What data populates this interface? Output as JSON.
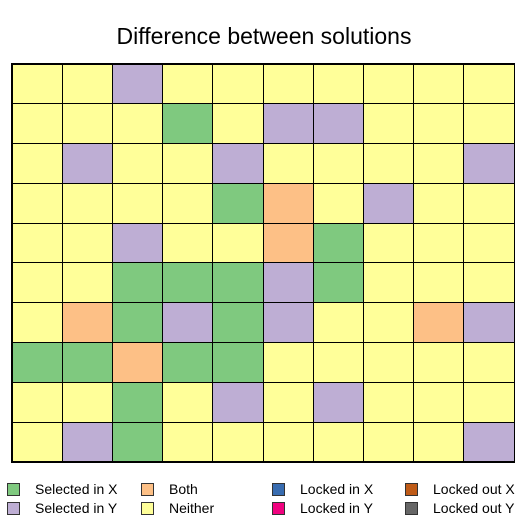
{
  "title": "Difference between solutions",
  "colors": {
    "selected_x": "#7fc97f",
    "selected_y": "#beaed4",
    "both": "#fdc086",
    "neither": "#ffff99",
    "locked_x": "#386cb0",
    "locked_y": "#f0027f",
    "locked_out_x": "#bf5b17",
    "locked_out_y": "#666666"
  },
  "grid": {
    "rows": 10,
    "cols": 10,
    "legend_key": {
      "X": "selected_x",
      "Y": "selected_y",
      "B": "both",
      "N": "neither"
    },
    "cells": [
      [
        "N",
        "N",
        "Y",
        "N",
        "N",
        "N",
        "N",
        "N",
        "N",
        "N"
      ],
      [
        "N",
        "N",
        "N",
        "X",
        "N",
        "Y",
        "Y",
        "N",
        "N",
        "N"
      ],
      [
        "N",
        "Y",
        "N",
        "N",
        "Y",
        "N",
        "N",
        "N",
        "N",
        "Y"
      ],
      [
        "N",
        "N",
        "N",
        "N",
        "X",
        "B",
        "N",
        "Y",
        "N",
        "N"
      ],
      [
        "N",
        "N",
        "Y",
        "N",
        "N",
        "B",
        "X",
        "N",
        "N",
        "N"
      ],
      [
        "N",
        "N",
        "X",
        "X",
        "X",
        "Y",
        "X",
        "N",
        "N",
        "N"
      ],
      [
        "N",
        "B",
        "X",
        "Y",
        "X",
        "Y",
        "N",
        "N",
        "B",
        "Y"
      ],
      [
        "X",
        "X",
        "B",
        "X",
        "X",
        "N",
        "N",
        "N",
        "N",
        "N"
      ],
      [
        "N",
        "N",
        "X",
        "N",
        "Y",
        "N",
        "Y",
        "N",
        "N",
        "N"
      ],
      [
        "N",
        "Y",
        "X",
        "N",
        "N",
        "N",
        "N",
        "N",
        "N",
        "Y"
      ]
    ]
  },
  "legend": [
    {
      "label": "Selected in X",
      "color_key": "selected_x"
    },
    {
      "label": "Selected in Y",
      "color_key": "selected_y"
    },
    {
      "label": "Both",
      "color_key": "both"
    },
    {
      "label": "Neither",
      "color_key": "neither"
    },
    {
      "label": "Locked in X",
      "color_key": "locked_x"
    },
    {
      "label": "Locked in Y",
      "color_key": "locked_y"
    },
    {
      "label": "Locked out X",
      "color_key": "locked_out_x"
    },
    {
      "label": "Locked out Y",
      "color_key": "locked_out_y"
    }
  ]
}
